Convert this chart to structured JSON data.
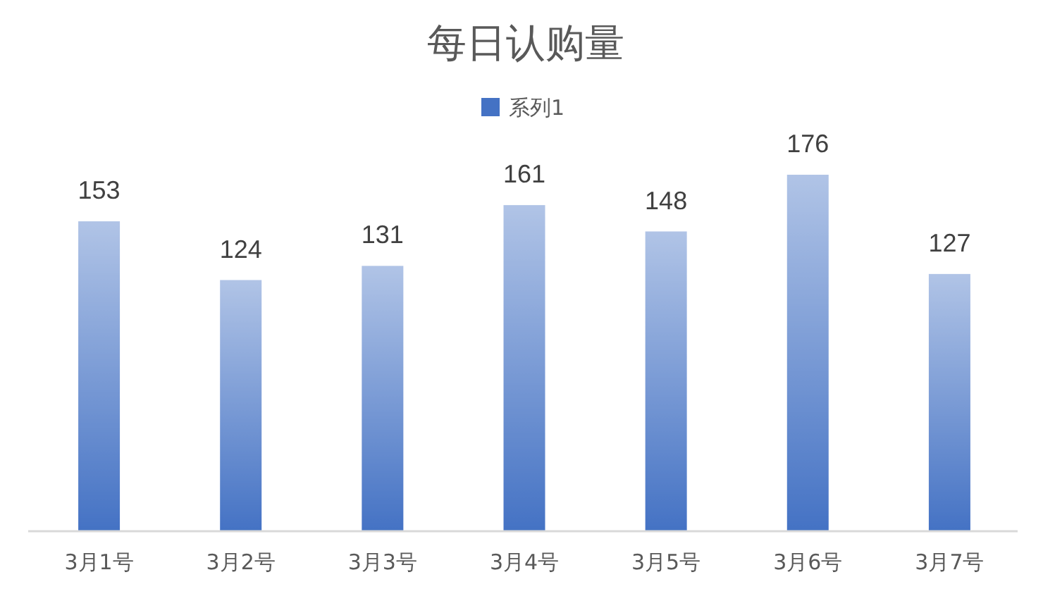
{
  "chart_data": {
    "type": "bar",
    "title": "每日认购量",
    "categories": [
      "3月1号",
      "3月2号",
      "3月3号",
      "3月4号",
      "3月5号",
      "3月6号",
      "3月7号"
    ],
    "series": [
      {
        "name": "系列1",
        "color": "#4472c4",
        "values": [
          153,
          124,
          131,
          161,
          148,
          176,
          127
        ]
      }
    ],
    "tick_labels": "x",
    "data_labels": true,
    "legend": "top"
  }
}
